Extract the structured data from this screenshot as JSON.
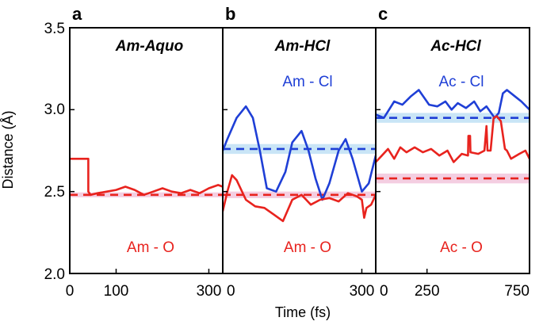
{
  "figure": {
    "ylabel": "Distance (Å)",
    "xlabel": "Time (fs)",
    "y_ticks": [
      "2.0",
      "2.5",
      "3.0",
      "3.5"
    ]
  },
  "chart_data": [
    {
      "type": "line",
      "panel_label": "a",
      "title": "Am-Aquo",
      "xlabel": "Time (fs)",
      "ylabel": "Distance (Å)",
      "xlim": [
        0,
        330
      ],
      "ylim": [
        2.0,
        3.5
      ],
      "x_ticks": [
        0,
        100,
        300
      ],
      "x_tick_labels": [
        "0",
        "100",
        "300"
      ],
      "grid": false,
      "annotations": [
        {
          "text": "Am - O",
          "color": "#e8231e"
        }
      ],
      "series": [
        {
          "color": "#e8231e",
          "style": "solid",
          "x": [
            0,
            40,
            40,
            45,
            60,
            80,
            100,
            120,
            140,
            160,
            180,
            200,
            220,
            240,
            260,
            280,
            300,
            320,
            330
          ],
          "y": [
            2.7,
            2.7,
            2.5,
            2.48,
            2.49,
            2.5,
            2.51,
            2.53,
            2.51,
            2.48,
            2.5,
            2.52,
            2.5,
            2.49,
            2.51,
            2.49,
            2.52,
            2.54,
            2.53
          ]
        },
        {
          "color": "#e8231e",
          "style": "dashed",
          "x": [
            0,
            330
          ],
          "y": [
            2.48,
            2.48
          ]
        }
      ],
      "bands": [
        {
          "color": "#f2c6dc",
          "y0": 2.465,
          "y1": 2.495
        }
      ]
    },
    {
      "type": "line",
      "panel_label": "b",
      "title": "Am-HCl",
      "xlabel": "Time (fs)",
      "ylabel": "Distance (Å)",
      "xlim": [
        0,
        330
      ],
      "ylim": [
        2.0,
        3.5
      ],
      "x_ticks": [
        0,
        300
      ],
      "x_tick_labels": [
        "0",
        "300"
      ],
      "grid": false,
      "annotations": [
        {
          "text": "Am - Cl",
          "color": "#1f3fd6"
        },
        {
          "text": "Am - O",
          "color": "#e8231e"
        }
      ],
      "series": [
        {
          "color": "#1f3fd6",
          "style": "solid",
          "x": [
            0,
            10,
            30,
            50,
            65,
            80,
            95,
            115,
            135,
            150,
            170,
            185,
            200,
            215,
            230,
            250,
            265,
            280,
            300,
            315,
            330
          ],
          "y": [
            2.75,
            2.82,
            2.95,
            3.02,
            2.95,
            2.75,
            2.52,
            2.5,
            2.62,
            2.8,
            2.87,
            2.75,
            2.58,
            2.45,
            2.55,
            2.75,
            2.82,
            2.7,
            2.5,
            2.55,
            2.72
          ]
        },
        {
          "color": "#e8231e",
          "style": "solid",
          "x": [
            0,
            10,
            20,
            30,
            50,
            70,
            90,
            110,
            130,
            150,
            170,
            190,
            210,
            230,
            250,
            270,
            290,
            300,
            305,
            310,
            320,
            330
          ],
          "y": [
            2.38,
            2.5,
            2.6,
            2.57,
            2.45,
            2.41,
            2.4,
            2.36,
            2.32,
            2.45,
            2.48,
            2.42,
            2.45,
            2.46,
            2.44,
            2.49,
            2.47,
            2.45,
            2.34,
            2.4,
            2.42,
            2.48
          ]
        },
        {
          "color": "#1f3fd6",
          "style": "dashed",
          "x": [
            0,
            330
          ],
          "y": [
            2.76,
            2.76
          ]
        },
        {
          "color": "#e8231e",
          "style": "dashed",
          "x": [
            0,
            330
          ],
          "y": [
            2.48,
            2.48
          ]
        }
      ],
      "bands": [
        {
          "color": "#bfe0f4",
          "y0": 2.73,
          "y1": 2.79
        },
        {
          "color": "#f2c6dc",
          "y0": 2.46,
          "y1": 2.5
        }
      ]
    },
    {
      "type": "line",
      "panel_label": "c",
      "title": "Ac-HCl",
      "xlabel": "Time (fs)",
      "ylabel": "Distance (Å)",
      "xlim": [
        0,
        750
      ],
      "ylim": [
        2.0,
        3.5
      ],
      "x_ticks": [
        0,
        250,
        750
      ],
      "x_tick_labels": [
        "0",
        "250",
        "750"
      ],
      "grid": false,
      "annotations": [
        {
          "text": "Ac - Cl",
          "color": "#1f3fd6"
        },
        {
          "text": "Ac - O",
          "color": "#e8231e"
        }
      ],
      "series": [
        {
          "color": "#1f3fd6",
          "style": "solid",
          "x": [
            0,
            40,
            90,
            130,
            170,
            210,
            260,
            300,
            340,
            370,
            400,
            440,
            480,
            510,
            540,
            580,
            600,
            620,
            640,
            680,
            710,
            750
          ],
          "y": [
            2.97,
            2.95,
            3.05,
            3.03,
            3.08,
            3.12,
            3.03,
            3.02,
            3.05,
            3.0,
            3.04,
            3.01,
            3.05,
            2.99,
            3.02,
            2.95,
            2.98,
            3.1,
            3.12,
            3.08,
            3.05,
            3.0
          ]
        },
        {
          "color": "#e8231e",
          "style": "solid",
          "x": [
            0,
            30,
            60,
            90,
            120,
            150,
            190,
            230,
            270,
            310,
            350,
            380,
            420,
            450,
            452,
            460,
            462,
            500,
            530,
            540,
            545,
            560,
            575,
            590,
            610,
            630,
            640,
            660,
            700,
            730,
            750
          ],
          "y": [
            2.68,
            2.72,
            2.76,
            2.7,
            2.77,
            2.74,
            2.77,
            2.74,
            2.76,
            2.72,
            2.75,
            2.68,
            2.73,
            2.72,
            2.84,
            2.84,
            2.74,
            2.73,
            2.75,
            2.9,
            2.75,
            2.75,
            2.95,
            2.96,
            2.93,
            2.76,
            2.75,
            2.7,
            2.73,
            2.75,
            2.7
          ]
        },
        {
          "color": "#1f3fd6",
          "style": "dashed",
          "x": [
            0,
            750
          ],
          "y": [
            2.95,
            2.95
          ]
        },
        {
          "color": "#e8231e",
          "style": "dashed",
          "x": [
            0,
            750
          ],
          "y": [
            2.58,
            2.58
          ]
        }
      ],
      "bands": [
        {
          "color": "#bfe0f4",
          "y0": 2.92,
          "y1": 2.98
        },
        {
          "color": "#f2c6dc",
          "y0": 2.55,
          "y1": 2.61
        }
      ]
    }
  ]
}
